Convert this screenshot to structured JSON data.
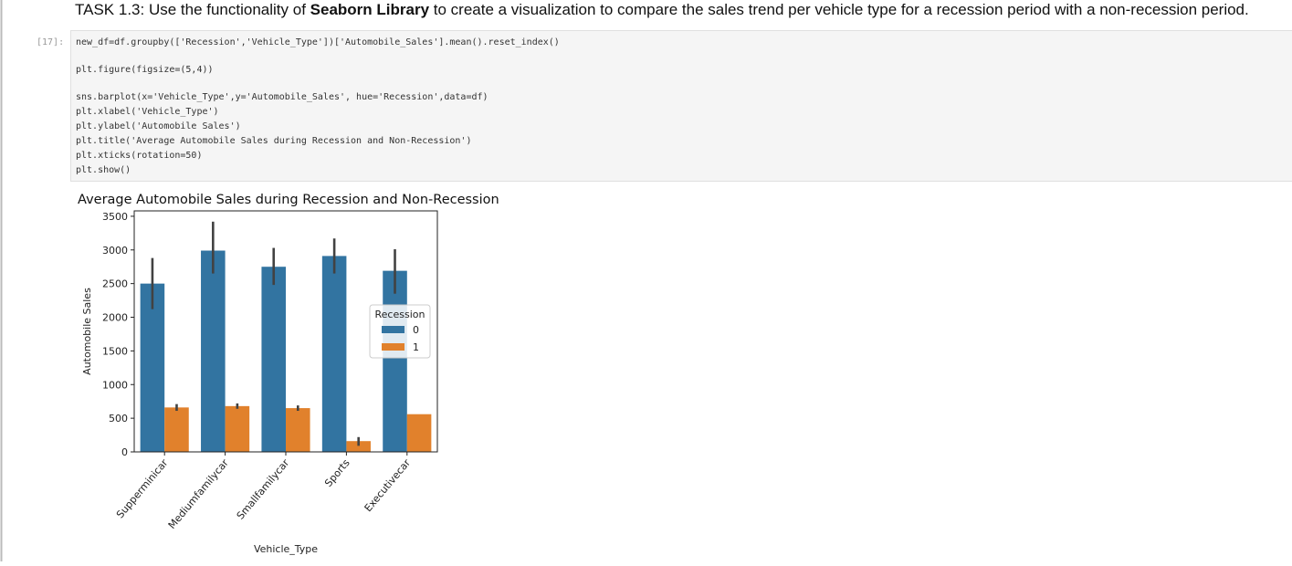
{
  "header": {
    "parts": [
      "TASK 1.3: Use the functionality of ",
      "Seaborn Library",
      " to create a visualization to compare the sales trend per vehicle type for a recession period with a non-recession period."
    ]
  },
  "cell": {
    "prompt": "[17]:",
    "code": [
      [
        "new_df=df.groupby(['Recession','Vehicle_Type'])['Automobile_Sales'].mean().reset_index()"
      ],
      [
        "plt.figure(figsize=(5,4))"
      ],
      [
        "sns.barplot(x='Vehicle_Type',y='Automobile_Sales', hue='Recession',data=df)",
        "plt.xlabel('Vehicle_Type')",
        "plt.ylabel('Automobile Sales')",
        "plt.title('Average Automobile Sales during Recession and Non-Recession')",
        "plt.xticks(rotation=50)",
        "plt.show()"
      ]
    ]
  },
  "chart_data": {
    "type": "bar",
    "title": "Average Automobile Sales during Recession and Non-Recession",
    "x_label": "Vehicle_Type",
    "y_label": "Automobile Sales",
    "categories": [
      "Supperminicar",
      "Mediumfamilycar",
      "Smallfamilycar",
      "Sports",
      "Executivecar"
    ],
    "series": [
      {
        "name": "0",
        "color": "#3274a1",
        "values": [
          2500,
          2990,
          2750,
          2910,
          2690
        ],
        "err_low": [
          2120,
          2650,
          2480,
          2650,
          2350
        ],
        "err_high": [
          2880,
          3420,
          3030,
          3170,
          3010
        ]
      },
      {
        "name": "1",
        "color": "#e1812c",
        "values": [
          660,
          680,
          650,
          160,
          560
        ],
        "err_low": [
          610,
          640,
          610,
          90,
          560
        ],
        "err_high": [
          710,
          720,
          690,
          220,
          560
        ]
      }
    ],
    "legend_title": "Recession",
    "legend_position": "center right",
    "ylim": [
      0,
      3580
    ],
    "yticks": [
      0,
      500,
      1000,
      1500,
      2000,
      2500,
      3000,
      3500
    ],
    "rotation": 50
  }
}
